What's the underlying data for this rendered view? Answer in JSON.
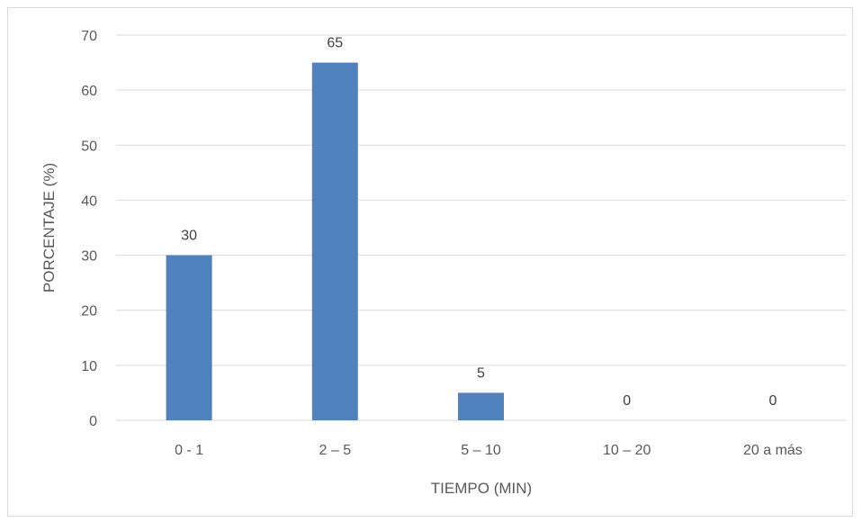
{
  "chart_data": {
    "type": "bar",
    "categories": [
      "0 - 1",
      "2 – 5",
      "5 – 10",
      "10 – 20",
      "20 a más"
    ],
    "values": [
      30,
      65,
      5,
      0,
      0
    ],
    "data_labels": [
      "30",
      "65",
      "5",
      "0",
      "0"
    ],
    "title": "",
    "xlabel": "TIEMPO (MIN)",
    "ylabel": "PORCENTAJE (%)",
    "ylim": [
      0,
      70
    ],
    "yticks": [
      "0",
      "10",
      "20",
      "30",
      "40",
      "50",
      "60",
      "70"
    ],
    "grid": true,
    "legend": "none",
    "colors": {
      "bar": "#4f81bd",
      "grid": "#d9d9d9",
      "text": "#595959"
    }
  }
}
